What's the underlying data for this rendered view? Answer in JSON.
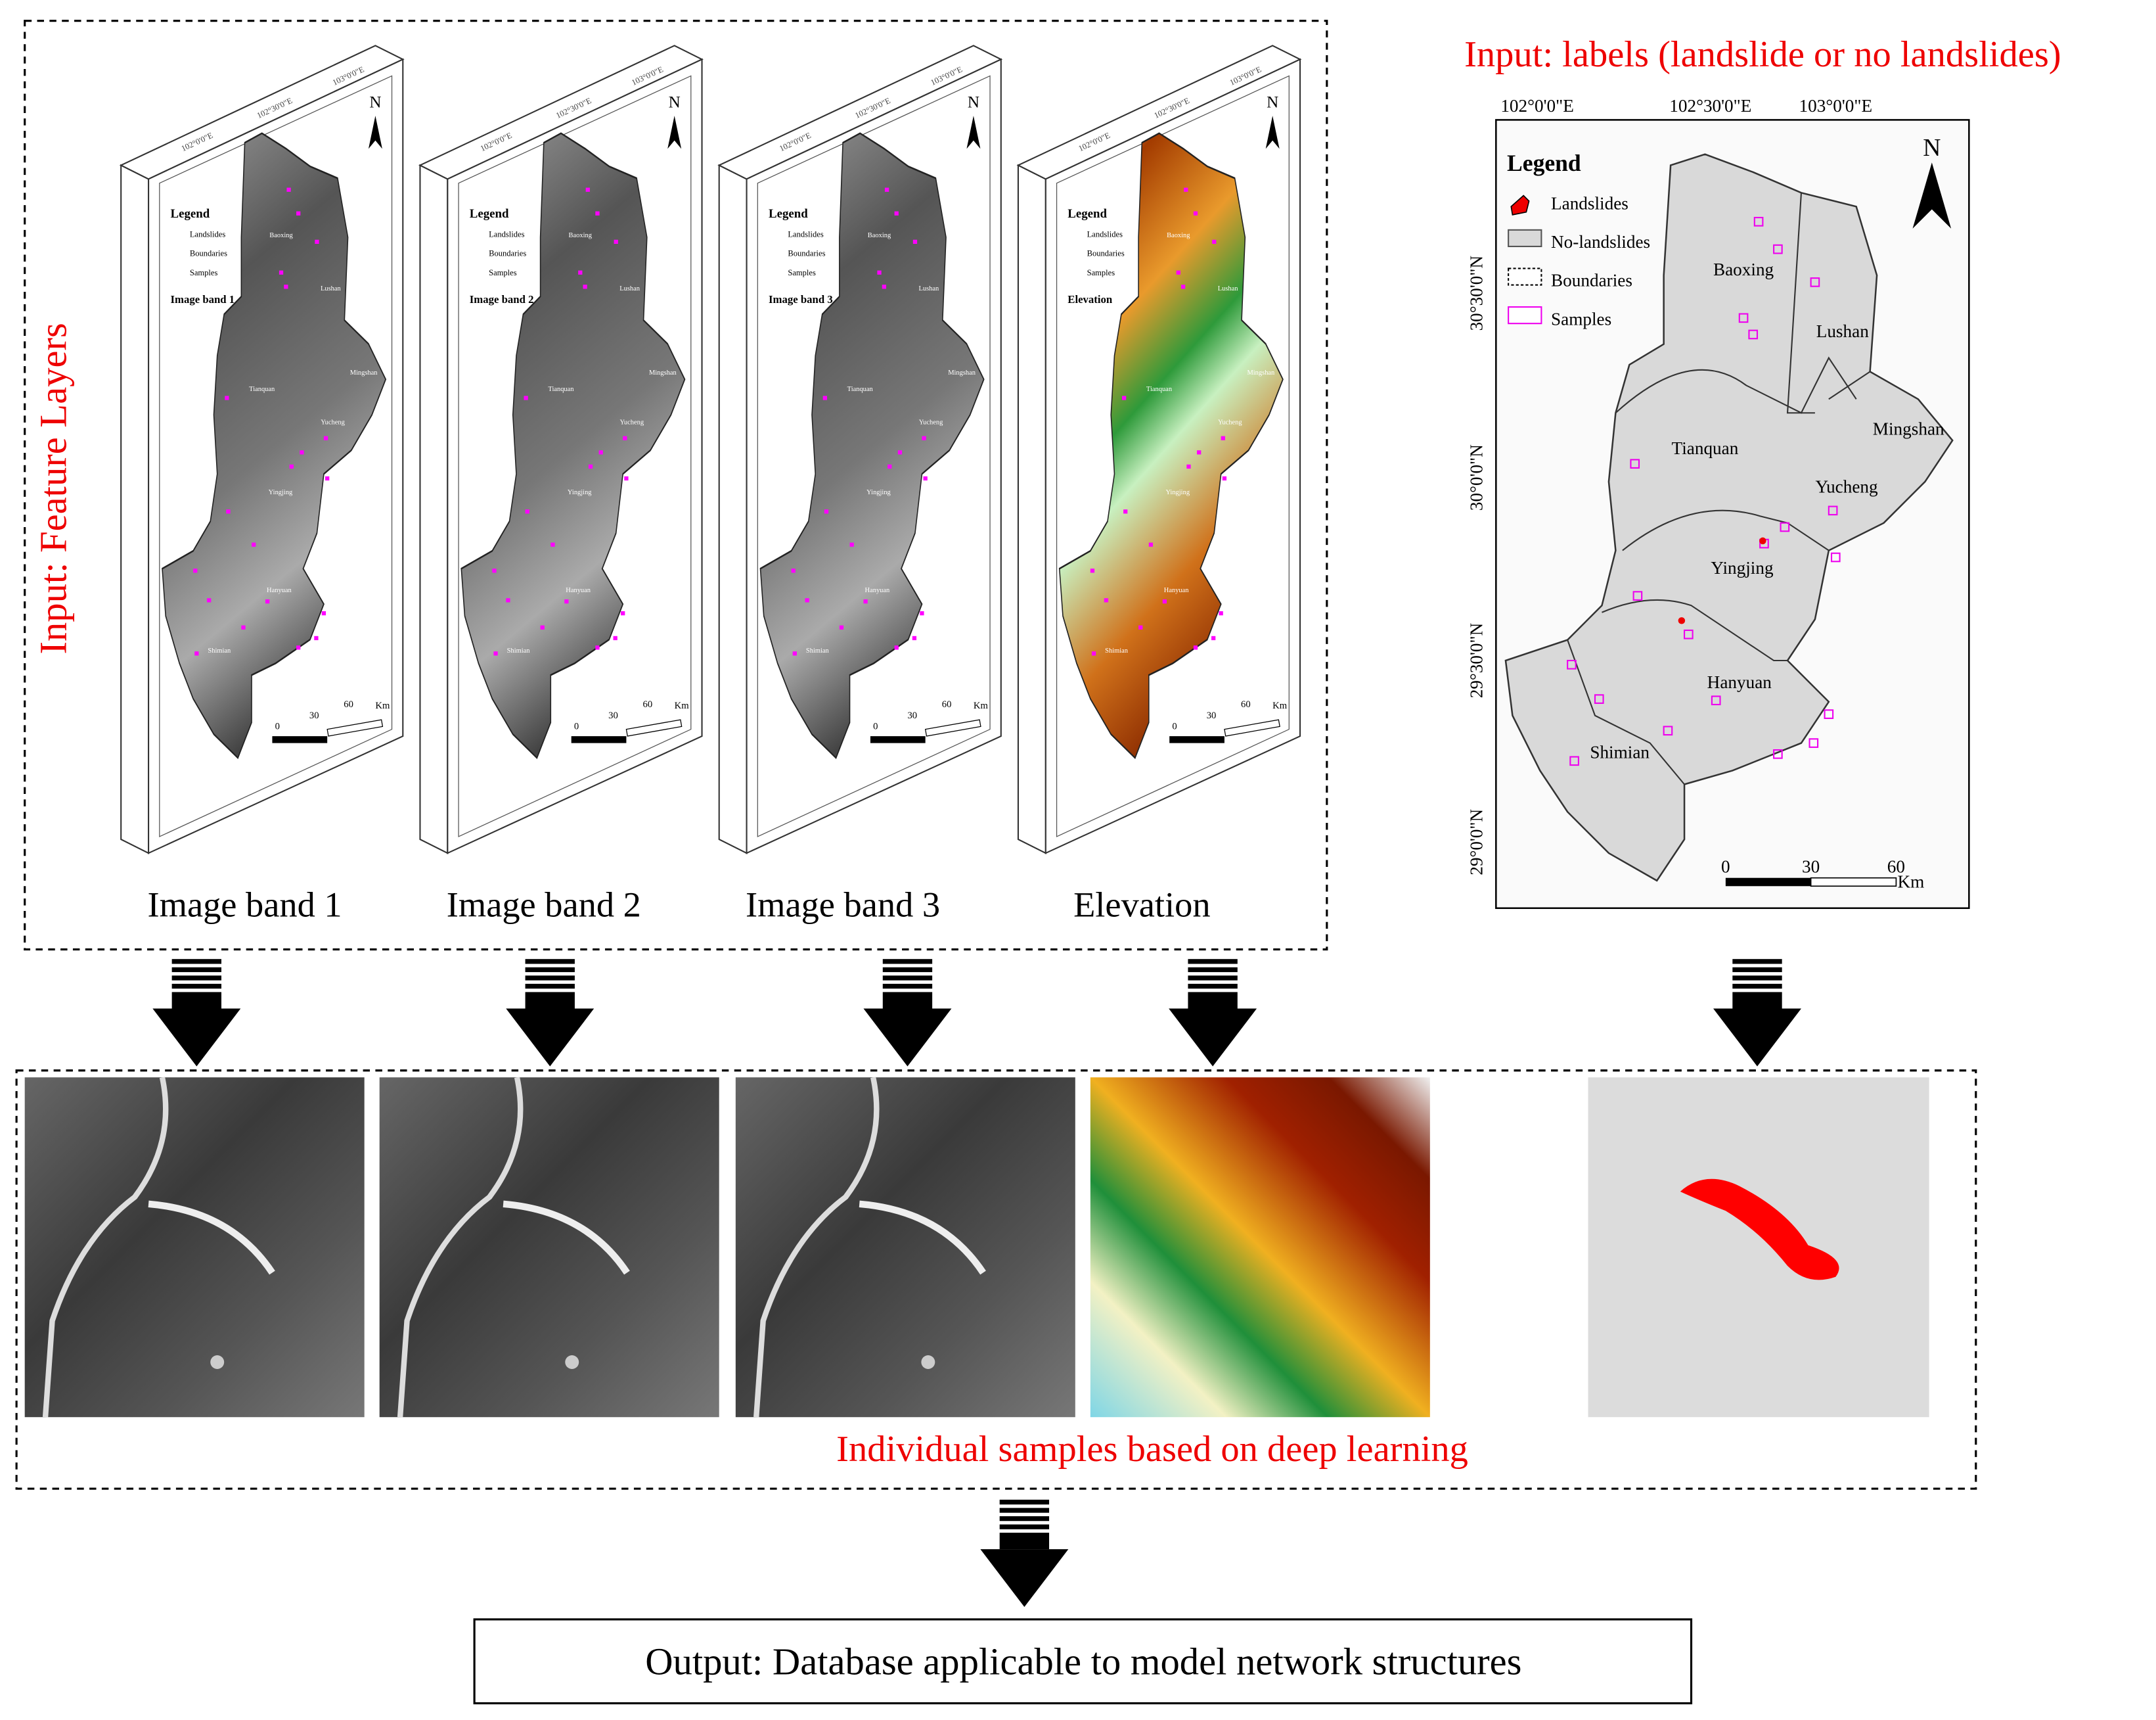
{
  "feature_layers": {
    "title": "Input: Feature Layers",
    "panels": [
      {
        "caption": "Image band 1",
        "layer_label": "Image band 1"
      },
      {
        "caption": "Image band 2",
        "layer_label": "Image band 2"
      },
      {
        "caption": "Image band 3",
        "layer_label": "Image band 3"
      },
      {
        "caption": "Elevation",
        "layer_label": "Elevation"
      }
    ],
    "legend_title": "Legend",
    "legend_items": [
      "Landslides",
      "Boundaries",
      "Samples"
    ],
    "scale_labels": [
      "0",
      "30",
      "60"
    ],
    "scale_unit": "Km",
    "north": "N"
  },
  "label_map": {
    "title": "Input: labels (landslide or no landslides)",
    "lon_labels": [
      "102°0'0\"E",
      "102°30'0\"E",
      "103°0'0\"E"
    ],
    "lat_labels": [
      "30°30'0\"N",
      "30°0'0\"N",
      "29°30'0\"N",
      "29°0'0\"N"
    ],
    "legend_title": "Legend",
    "legend_items": [
      "Landslides",
      "No-landslides",
      "Boundaries",
      "Samples"
    ],
    "places": [
      "Baoxing",
      "Lushan",
      "Tianquan",
      "Mingshan",
      "Yucheng",
      "Yingjing",
      "Hanyuan",
      "Shimian"
    ],
    "scale_labels": [
      "0",
      "30",
      "60"
    ],
    "scale_unit": "Km",
    "north": "N"
  },
  "samples": {
    "caption": "Individual samples based on deep learning"
  },
  "output": {
    "label": "Output: Database applicable to model network structures"
  }
}
